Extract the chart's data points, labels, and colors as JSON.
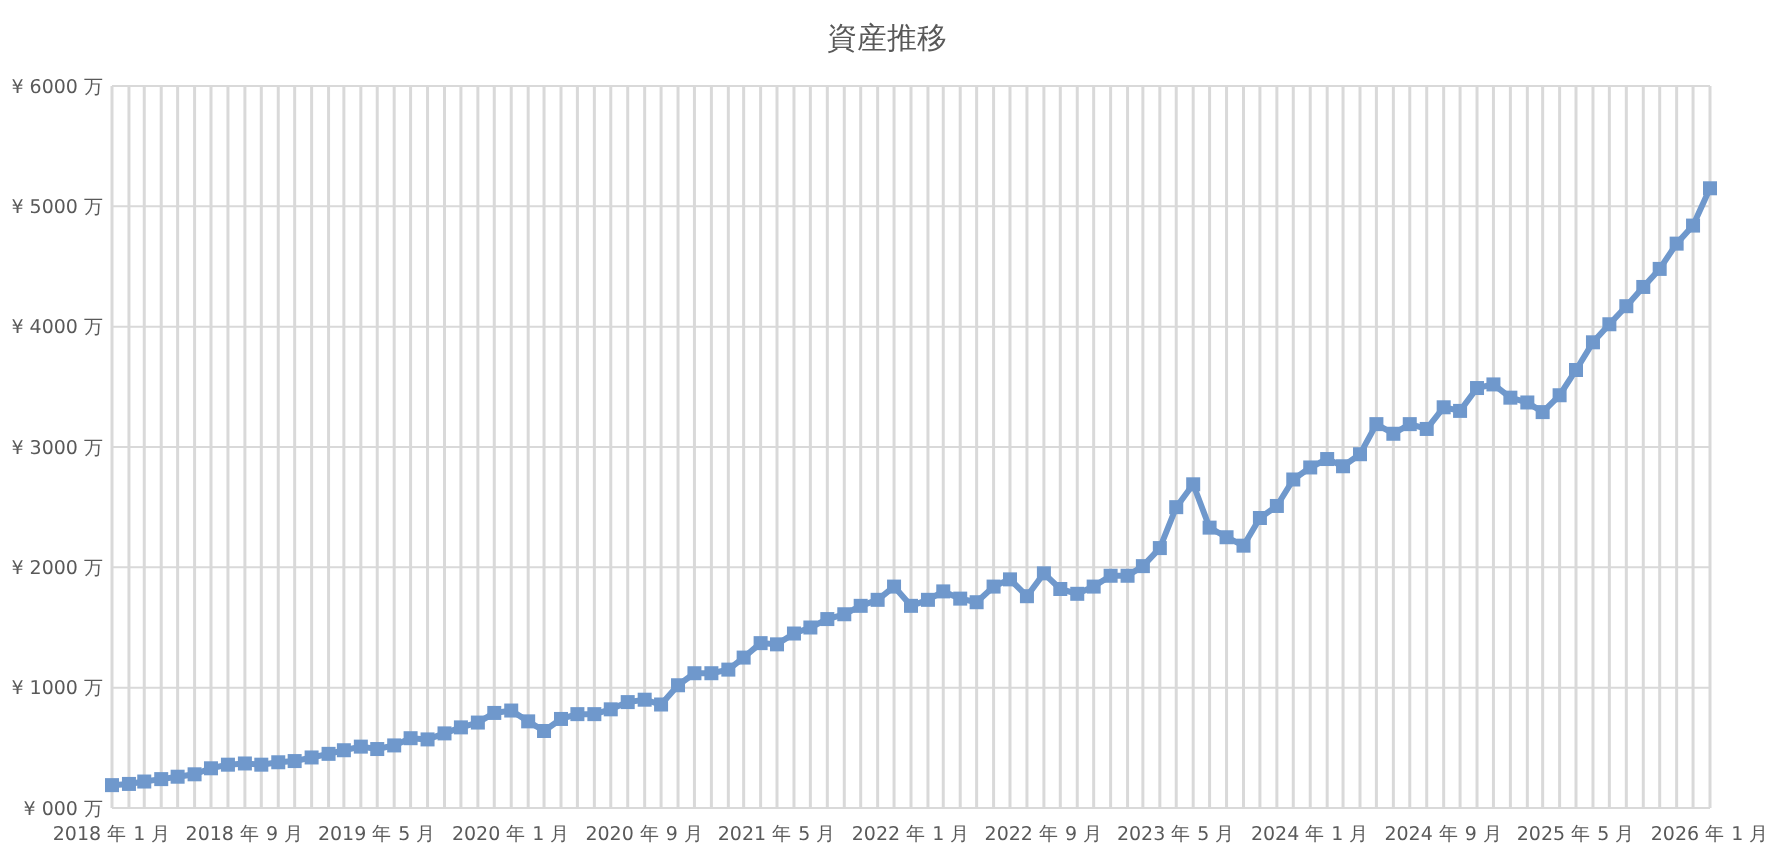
{
  "chart_data": {
    "type": "line",
    "title": "資産推移",
    "x": [
      "2018-01",
      "2018-02",
      "2018-03",
      "2018-04",
      "2018-05",
      "2018-06",
      "2018-07",
      "2018-08",
      "2018-09",
      "2018-10",
      "2018-11",
      "2018-12",
      "2019-01",
      "2019-02",
      "2019-03",
      "2019-04",
      "2019-05",
      "2019-06",
      "2019-07",
      "2019-08",
      "2019-09",
      "2019-10",
      "2019-11",
      "2019-12",
      "2020-01",
      "2020-02",
      "2020-03",
      "2020-04",
      "2020-05",
      "2020-06",
      "2020-07",
      "2020-08",
      "2020-09",
      "2020-10",
      "2020-11",
      "2020-12",
      "2021-01",
      "2021-02",
      "2021-03",
      "2021-04",
      "2021-05",
      "2021-06",
      "2021-07",
      "2021-08",
      "2021-09",
      "2021-10",
      "2021-11",
      "2021-12",
      "2022-01",
      "2022-02",
      "2022-03",
      "2022-04",
      "2022-05",
      "2022-06",
      "2022-07",
      "2022-08",
      "2022-09",
      "2022-10",
      "2022-11",
      "2022-12",
      "2023-01",
      "2023-02",
      "2023-03",
      "2023-04",
      "2023-05",
      "2023-06",
      "2023-07",
      "2023-08",
      "2023-09",
      "2023-10",
      "2023-11",
      "2023-12",
      "2024-01",
      "2024-02",
      "2024-03",
      "2024-04",
      "2024-05",
      "2024-06",
      "2024-07",
      "2024-08",
      "2024-09",
      "2024-10",
      "2024-11",
      "2024-12",
      "2025-01",
      "2025-02",
      "2025-03",
      "2025-04",
      "2025-05",
      "2025-06",
      "2025-07",
      "2025-08",
      "2025-09",
      "2025-10",
      "2025-11",
      "2025-12",
      "2026-01"
    ],
    "series": [
      {
        "color": "#6f98cc",
        "values": [
          190,
          200,
          220,
          240,
          260,
          280,
          330,
          360,
          370,
          360,
          380,
          390,
          420,
          450,
          480,
          510,
          490,
          520,
          580,
          570,
          620,
          670,
          710,
          790,
          810,
          720,
          640,
          740,
          780,
          780,
          820,
          880,
          900,
          860,
          1020,
          1120,
          1120,
          1150,
          1250,
          1370,
          1360,
          1450,
          1500,
          1570,
          1610,
          1680,
          1730,
          1840,
          1680,
          1730,
          1800,
          1740,
          1710,
          1840,
          1900,
          1760,
          1950,
          1820,
          1780,
          1840,
          1930,
          1930,
          2010,
          2160,
          2500,
          2690,
          2330,
          2250,
          2180,
          2410,
          2510,
          2730,
          2830,
          2900,
          2840,
          2940,
          3190,
          3110,
          3190,
          3150,
          3330,
          3300,
          3490,
          3520,
          3410,
          3370,
          3290,
          3430,
          3640,
          3870,
          4020,
          4170,
          4330,
          4480,
          4690,
          4840,
          5150
        ]
      }
    ],
    "xlim": [
      "2018-01",
      "2026-01"
    ],
    "xticks": [
      {
        "value": "2018-01",
        "label": "2018 年 1 月"
      },
      {
        "value": "2018-02",
        "label": null
      },
      {
        "value": "2018-03",
        "label": null
      },
      {
        "value": "2018-04",
        "label": null
      },
      {
        "value": "2018-05",
        "label": null
      },
      {
        "value": "2018-06",
        "label": null
      },
      {
        "value": "2018-07",
        "label": null
      },
      {
        "value": "2018-08",
        "label": null
      },
      {
        "value": "2018-09",
        "label": "2018 年 9 月"
      },
      {
        "value": "2018-10",
        "label": null
      },
      {
        "value": "2018-11",
        "label": null
      },
      {
        "value": "2018-12",
        "label": null
      },
      {
        "value": "2019-01",
        "label": null
      },
      {
        "value": "2019-02",
        "label": null
      },
      {
        "value": "2019-03",
        "label": null
      },
      {
        "value": "2019-04",
        "label": null
      },
      {
        "value": "2019-05",
        "label": "2019 年 5 月"
      },
      {
        "value": "2019-06",
        "label": null
      },
      {
        "value": "2019-07",
        "label": null
      },
      {
        "value": "2019-08",
        "label": null
      },
      {
        "value": "2019-09",
        "label": null
      },
      {
        "value": "2019-10",
        "label": null
      },
      {
        "value": "2019-11",
        "label": null
      },
      {
        "value": "2019-12",
        "label": null
      },
      {
        "value": "2020-01",
        "label": "2020 年 1 月"
      },
      {
        "value": "2020-02",
        "label": null
      },
      {
        "value": "2020-03",
        "label": null
      },
      {
        "value": "2020-04",
        "label": null
      },
      {
        "value": "2020-05",
        "label": null
      },
      {
        "value": "2020-06",
        "label": null
      },
      {
        "value": "2020-07",
        "label": null
      },
      {
        "value": "2020-08",
        "label": null
      },
      {
        "value": "2020-09",
        "label": "2020 年 9 月"
      },
      {
        "value": "2020-10",
        "label": null
      },
      {
        "value": "2020-11",
        "label": null
      },
      {
        "value": "2020-12",
        "label": null
      },
      {
        "value": "2021-01",
        "label": null
      },
      {
        "value": "2021-02",
        "label": null
      },
      {
        "value": "2021-03",
        "label": null
      },
      {
        "value": "2021-04",
        "label": null
      },
      {
        "value": "2021-05",
        "label": "2021 年 5 月"
      },
      {
        "value": "2021-06",
        "label": null
      },
      {
        "value": "2021-07",
        "label": null
      },
      {
        "value": "2021-08",
        "label": null
      },
      {
        "value": "2021-09",
        "label": null
      },
      {
        "value": "2021-10",
        "label": null
      },
      {
        "value": "2021-11",
        "label": null
      },
      {
        "value": "2021-12",
        "label": null
      },
      {
        "value": "2022-01",
        "label": "2022 年 1 月"
      },
      {
        "value": "2022-02",
        "label": null
      },
      {
        "value": "2022-03",
        "label": null
      },
      {
        "value": "2022-04",
        "label": null
      },
      {
        "value": "2022-05",
        "label": null
      },
      {
        "value": "2022-06",
        "label": null
      },
      {
        "value": "2022-07",
        "label": null
      },
      {
        "value": "2022-08",
        "label": null
      },
      {
        "value": "2022-09",
        "label": "2022 年 9 月"
      },
      {
        "value": "2022-10",
        "label": null
      },
      {
        "value": "2022-11",
        "label": null
      },
      {
        "value": "2022-12",
        "label": null
      },
      {
        "value": "2023-01",
        "label": null
      },
      {
        "value": "2023-02",
        "label": null
      },
      {
        "value": "2023-03",
        "label": null
      },
      {
        "value": "2023-04",
        "label": null
      },
      {
        "value": "2023-05",
        "label": "2023 年 5 月"
      },
      {
        "value": "2023-06",
        "label": null
      },
      {
        "value": "2023-07",
        "label": null
      },
      {
        "value": "2023-08",
        "label": null
      },
      {
        "value": "2023-09",
        "label": null
      },
      {
        "value": "2023-10",
        "label": null
      },
      {
        "value": "2023-11",
        "label": null
      },
      {
        "value": "2023-12",
        "label": null
      },
      {
        "value": "2024-01",
        "label": "2024 年 1 月"
      },
      {
        "value": "2024-02",
        "label": null
      },
      {
        "value": "2024-03",
        "label": null
      },
      {
        "value": "2024-04",
        "label": null
      },
      {
        "value": "2024-05",
        "label": null
      },
      {
        "value": "2024-06",
        "label": null
      },
      {
        "value": "2024-07",
        "label": null
      },
      {
        "value": "2024-08",
        "label": null
      },
      {
        "value": "2024-09",
        "label": "2024 年 9 月"
      },
      {
        "value": "2024-10",
        "label": null
      },
      {
        "value": "2024-11",
        "label": null
      },
      {
        "value": "2024-12",
        "label": null
      },
      {
        "value": "2025-01",
        "label": null
      },
      {
        "value": "2025-02",
        "label": null
      },
      {
        "value": "2025-03",
        "label": null
      },
      {
        "value": "2025-04",
        "label": null
      },
      {
        "value": "2025-05",
        "label": "2025 年 5 月"
      },
      {
        "value": "2025-06",
        "label": null
      },
      {
        "value": "2025-07",
        "label": null
      },
      {
        "value": "2025-08",
        "label": null
      },
      {
        "value": "2025-09",
        "label": null
      },
      {
        "value": "2025-10",
        "label": null
      },
      {
        "value": "2025-11",
        "label": null
      },
      {
        "value": "2025-12",
        "label": null
      },
      {
        "value": "2026-01",
        "label": "2026 年 1 月"
      }
    ],
    "ylim": [
      0,
      6000
    ],
    "yticks": [
      {
        "value": 0,
        "label": "¥ 000 万"
      },
      {
        "value": 1000,
        "label": "¥ 1000 万"
      },
      {
        "value": 2000,
        "label": "¥ 2000 万"
      },
      {
        "value": 3000,
        "label": "¥ 3000 万"
      },
      {
        "value": 4000,
        "label": "¥ 4000 万"
      },
      {
        "value": 5000,
        "label": "¥ 5000 万"
      },
      {
        "value": 6000,
        "label": "¥ 6000 万"
      }
    ],
    "grid": true,
    "marker": "square",
    "line_style": "solid"
  }
}
